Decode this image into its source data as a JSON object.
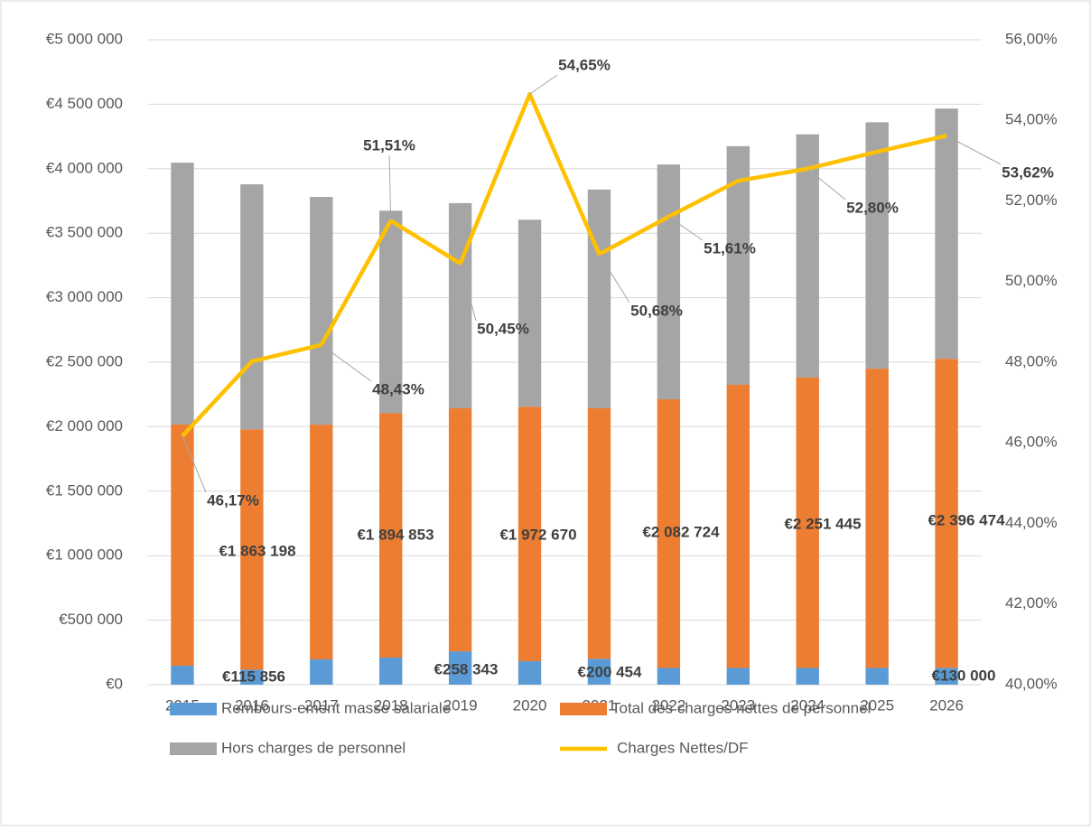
{
  "chart_data": {
    "type": "bar",
    "stacked": true,
    "categories": [
      "2015",
      "2016",
      "2017",
      "2018",
      "2019",
      "2020",
      "2021",
      "2022",
      "2023",
      "2024",
      "2025",
      "2026"
    ],
    "series": [
      {
        "name": "Rembours-ement masse salariale",
        "color": "#5b9bd5",
        "values": [
          147000,
          115856,
          196000,
          210000,
          258343,
          182000,
          200454,
          130000,
          130000,
          130000,
          130000,
          130000
        ],
        "value_labels": [
          null,
          "€115 856",
          null,
          null,
          "€258 343",
          null,
          "€200 454",
          null,
          null,
          null,
          null,
          "€130 000"
        ]
      },
      {
        "name": "Total des charges nettes de personnel",
        "color": "#ed7d31",
        "values": [
          1870000,
          1863198,
          1820000,
          1894853,
          1885000,
          1972670,
          1943000,
          2082724,
          2195000,
          2251445,
          2320000,
          2396474
        ],
        "value_labels": [
          null,
          "€1 863 198",
          null,
          "€1 894 853",
          null,
          "€1 972 670",
          null,
          "€2 082 724",
          null,
          "€2 251 445",
          null,
          "€2 396 474"
        ]
      },
      {
        "name": "Hors charges de personnel",
        "color": "#a5a5a5",
        "values": [
          2030000,
          1900000,
          1765000,
          1570000,
          1590000,
          1450000,
          1695000,
          1820000,
          1850000,
          1885000,
          1910000,
          1940000
        ]
      },
      {
        "name": "Charges Nettes/DF",
        "color": "#ffc000",
        "type": "line",
        "axis": "y2",
        "values": [
          46.17,
          48.02,
          48.43,
          51.51,
          50.45,
          54.65,
          50.68,
          51.61,
          52.5,
          52.8,
          53.22,
          53.62
        ],
        "value_labels": [
          "46,17%",
          null,
          "48,43%",
          "51,51%",
          "50,45%",
          "54,65%",
          "50,68%",
          "51,61%",
          null,
          "52,80%",
          null,
          "53,62%"
        ]
      }
    ],
    "ylim": [
      0,
      5000000
    ],
    "yticks": [
      {
        "value": 0,
        "label": "€0"
      },
      {
        "value": 500000,
        "label": "€500 000"
      },
      {
        "value": 1000000,
        "label": "€1 000 000"
      },
      {
        "value": 1500000,
        "label": "€1 500 000"
      },
      {
        "value": 2000000,
        "label": "€2 000 000"
      },
      {
        "value": 2500000,
        "label": "€2 500 000"
      },
      {
        "value": 3000000,
        "label": "€3 000 000"
      },
      {
        "value": 3500000,
        "label": "€3 500 000"
      },
      {
        "value": 4000000,
        "label": "€4 000 000"
      },
      {
        "value": 4500000,
        "label": "€4 500 000"
      },
      {
        "value": 5000000,
        "label": "€5 000 000"
      }
    ],
    "y2lim": [
      40,
      56
    ],
    "y2ticks": [
      {
        "value": 40,
        "label": "40,00%"
      },
      {
        "value": 42,
        "label": "42,00%"
      },
      {
        "value": 44,
        "label": "44,00%"
      },
      {
        "value": 46,
        "label": "46,00%"
      },
      {
        "value": 48,
        "label": "48,00%"
      },
      {
        "value": 50,
        "label": "50,00%"
      },
      {
        "value": 52,
        "label": "52,00%"
      },
      {
        "value": 54,
        "label": "54,00%"
      },
      {
        "value": 56,
        "label": "56,00%"
      }
    ],
    "grid": true,
    "legend": "bottom"
  }
}
